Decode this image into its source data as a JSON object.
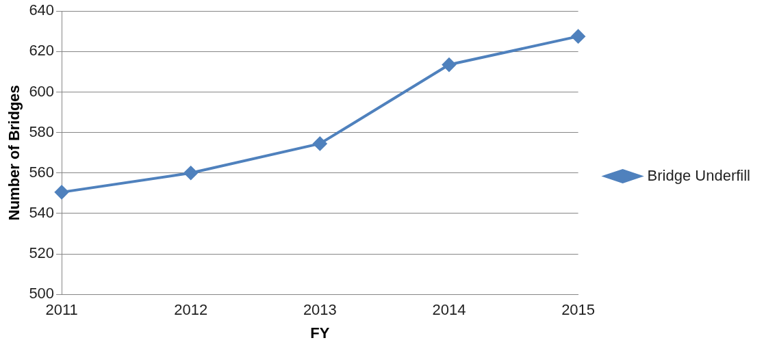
{
  "chart_data": {
    "type": "line",
    "xlabel": "FY",
    "ylabel": "Number of Bridges",
    "categories": [
      "2011",
      "2012",
      "2013",
      "2014",
      "2015"
    ],
    "series": [
      {
        "name": "Bridge Underfill",
        "color": "#4f81bd",
        "values": [
          550.5,
          560,
          574.5,
          613.5,
          627.5
        ]
      }
    ],
    "ylim": [
      500,
      640
    ],
    "yticks": [
      500,
      520,
      540,
      560,
      580,
      600,
      620,
      640
    ],
    "grid": "y",
    "legend": "right",
    "marker": "diamond",
    "line_style": "solid"
  }
}
